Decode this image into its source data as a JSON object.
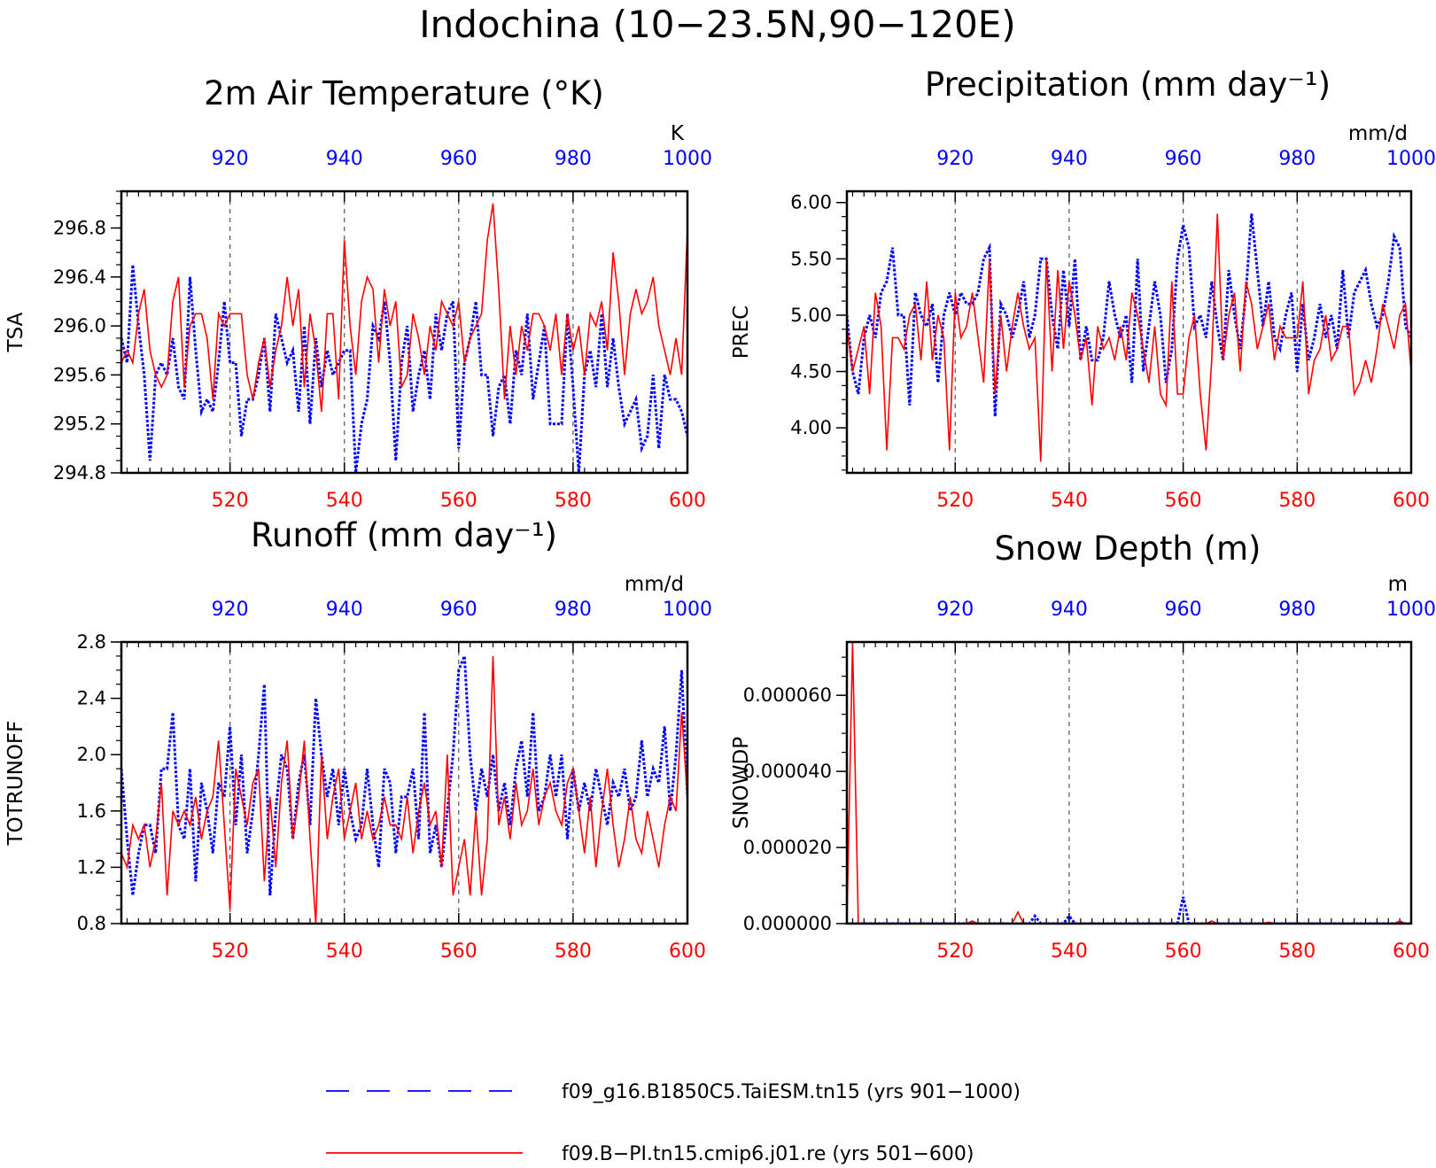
{
  "title": "Indochina (10−23.5N,90−120E)",
  "colors": {
    "case_a": "#0000ff",
    "case_b": "#ff0000",
    "axes": "#000000"
  },
  "legend": [
    {
      "label": "f09_g16.B1850C5.TaiESM.tn15 (yrs 901−1000)",
      "color": "#0000ff",
      "style": "dashed"
    },
    {
      "label": "f09.B−PI.tn15.cmip6.j01.re (yrs 501−600)",
      "color": "#ff0000",
      "style": "solid"
    }
  ],
  "chart_data": [
    {
      "type": "line",
      "title": "2m Air Temperature (°K)",
      "ylabel": "TSA",
      "units": "K",
      "x_bottom": {
        "range": [
          501,
          600
        ],
        "ticks": [
          "520",
          "540",
          "560",
          "580",
          "600"
        ]
      },
      "x_top": {
        "range": [
          901,
          1000
        ],
        "ticks": [
          "920",
          "940",
          "960",
          "980",
          "1000"
        ]
      },
      "ylim": [
        294.8,
        297.1
      ],
      "yticks": [
        "294.8",
        "295.2",
        "295.6",
        "296.0",
        "296.4",
        "296.8"
      ],
      "grid": "vertical dashed at 520, 540, 560, 580",
      "series": [
        {
          "name": "f09_g16.B1850C5.TaiESM.tn15 (yrs 901−1000)",
          "axis": "top",
          "values": [
            295.9,
            295.7,
            296.5,
            296.0,
            295.6,
            294.9,
            295.6,
            295.7,
            295.6,
            295.9,
            295.5,
            295.4,
            296.4,
            295.8,
            295.3,
            295.4,
            295.3,
            295.7,
            296.2,
            295.7,
            295.7,
            295.1,
            295.4,
            295.4,
            295.6,
            295.9,
            295.3,
            296.1,
            295.9,
            295.7,
            295.8,
            295.3,
            296.0,
            295.2,
            295.9,
            295.5,
            295.8,
            295.6,
            295.7,
            295.8,
            295.8,
            294.8,
            295.2,
            295.4,
            296.0,
            295.9,
            296.2,
            295.7,
            294.9,
            295.7,
            296.0,
            295.3,
            295.6,
            295.8,
            295.4,
            296.1,
            295.8,
            296.1,
            296.2,
            295.0,
            295.7,
            295.9,
            296.2,
            295.6,
            295.6,
            295.1,
            295.5,
            295.6,
            295.2,
            295.8,
            295.6,
            296.1,
            295.4,
            295.7,
            296.0,
            295.2,
            295.2,
            295.2,
            296.1,
            295.5,
            294.8,
            295.6,
            295.8,
            295.5,
            296.1,
            295.5,
            295.9,
            295.5,
            295.2,
            295.3,
            295.4,
            295.0,
            295.1,
            295.6,
            295.0,
            295.6,
            295.4,
            295.4,
            295.3,
            295.1
          ]
        },
        {
          "name": "f09.B−PI.tn15.cmip6.j01.re (yrs 501−600)",
          "axis": "bottom",
          "values": [
            295.7,
            295.8,
            295.7,
            296.1,
            296.3,
            295.8,
            295.6,
            295.5,
            295.6,
            296.2,
            296.4,
            295.5,
            296.0,
            296.1,
            296.1,
            295.9,
            295.4,
            296.1,
            296.0,
            296.1,
            296.1,
            296.1,
            295.6,
            295.4,
            295.7,
            295.9,
            295.5,
            295.8,
            296.0,
            296.4,
            296.0,
            296.3,
            295.5,
            296.1,
            295.8,
            295.3,
            296.1,
            296.1,
            295.4,
            296.7,
            296.0,
            295.6,
            296.2,
            296.4,
            296.3,
            295.7,
            296.3,
            296.0,
            296.2,
            295.5,
            295.6,
            296.1,
            295.9,
            295.6,
            296.0,
            295.8,
            296.2,
            296.1,
            296.0,
            296.2,
            295.7,
            295.9,
            296.0,
            296.1,
            296.7,
            297.0,
            296.3,
            295.4,
            296.0,
            295.6,
            296.0,
            295.8,
            296.1,
            296.1,
            296.0,
            295.8,
            296.1,
            295.6,
            296.1,
            295.8,
            296.0,
            295.6,
            296.1,
            296.0,
            296.2,
            295.8,
            296.6,
            296.2,
            295.6,
            296.1,
            296.3,
            296.1,
            296.2,
            296.4,
            296.0,
            295.8,
            295.6,
            295.9,
            295.6,
            296.8
          ]
        }
      ]
    },
    {
      "type": "line",
      "title": "Precipitation (mm day⁻¹)",
      "ylabel": "PREC",
      "units": "mm/d",
      "x_bottom": {
        "range": [
          501,
          600
        ],
        "ticks": [
          "520",
          "540",
          "560",
          "580",
          "600"
        ]
      },
      "x_top": {
        "range": [
          901,
          1000
        ],
        "ticks": [
          "920",
          "940",
          "960",
          "980",
          "1000"
        ]
      },
      "ylim": [
        3.6,
        6.1
      ],
      "yticks": [
        "4.00",
        "4.50",
        "5.00",
        "5.50",
        "6.00"
      ],
      "grid": "vertical dashed at 520, 540, 560, 580",
      "series": [
        {
          "name": "f09_g16.B1850C5.TaiESM.tn15 (yrs 901−1000)",
          "axis": "top",
          "values": [
            5.0,
            4.5,
            4.3,
            4.8,
            5.0,
            4.8,
            5.2,
            5.3,
            5.6,
            5.0,
            5.0,
            4.2,
            5.2,
            5.0,
            4.9,
            5.1,
            4.4,
            5.0,
            5.2,
            5.0,
            5.2,
            5.1,
            5.1,
            5.2,
            5.5,
            5.6,
            4.1,
            5.1,
            5.0,
            4.8,
            5.0,
            5.3,
            4.8,
            5.0,
            5.5,
            5.5,
            5.0,
            4.7,
            5.4,
            4.9,
            5.5,
            4.6,
            4.9,
            4.6,
            4.6,
            4.8,
            5.3,
            5.0,
            4.8,
            5.0,
            4.4,
            5.5,
            4.5,
            4.9,
            5.3,
            5.0,
            4.4,
            4.7,
            5.5,
            5.8,
            5.6,
            4.9,
            5.0,
            4.8,
            5.3,
            4.9,
            4.6,
            5.4,
            5.0,
            4.7,
            5.2,
            5.9,
            5.4,
            4.9,
            5.3,
            4.8,
            4.7,
            5.0,
            5.2,
            4.5,
            5.1,
            4.6,
            4.8,
            5.1,
            4.8,
            5.0,
            4.7,
            5.4,
            4.8,
            5.2,
            5.3,
            5.4,
            5.1,
            4.9,
            5.0,
            5.3,
            5.7,
            5.6,
            4.9,
            4.8
          ]
        },
        {
          "name": "f09.B−PI.tn15.cmip6.j01.re (yrs 501−600)",
          "axis": "bottom",
          "values": [
            4.9,
            4.5,
            4.7,
            4.9,
            4.3,
            5.2,
            4.9,
            3.8,
            4.8,
            4.8,
            4.7,
            5.0,
            5.1,
            4.6,
            5.3,
            4.6,
            5.0,
            4.8,
            3.8,
            5.2,
            4.8,
            4.9,
            5.2,
            4.8,
            4.4,
            5.5,
            4.3,
            5.0,
            4.5,
            4.9,
            5.2,
            4.9,
            4.7,
            4.8,
            3.7,
            5.5,
            4.5,
            5.4,
            4.7,
            5.3,
            5.0,
            4.6,
            4.8,
            4.2,
            4.9,
            4.7,
            4.8,
            4.6,
            4.9,
            4.6,
            5.2,
            5.0,
            4.7,
            4.4,
            4.9,
            4.3,
            4.2,
            5.3,
            4.3,
            4.3,
            4.8,
            5.0,
            4.3,
            3.8,
            4.6,
            5.9,
            4.6,
            5.0,
            5.2,
            4.5,
            5.3,
            5.1,
            4.7,
            4.9,
            5.1,
            4.6,
            4.9,
            4.8,
            4.8,
            4.8,
            5.3,
            4.3,
            4.6,
            4.7,
            5.0,
            4.6,
            4.7,
            4.9,
            4.9,
            4.3,
            4.4,
            4.6,
            4.4,
            4.7,
            5.1,
            4.9,
            4.7,
            5.0,
            5.1,
            4.5
          ]
        }
      ]
    },
    {
      "type": "line",
      "title": "Runoff (mm day⁻¹)",
      "ylabel": "TOTRUNOFF",
      "units": "mm/d",
      "x_bottom": {
        "range": [
          501,
          600
        ],
        "ticks": [
          "520",
          "540",
          "560",
          "580",
          "600"
        ]
      },
      "x_top": {
        "range": [
          901,
          1000
        ],
        "ticks": [
          "920",
          "940",
          "960",
          "980",
          "1000"
        ]
      },
      "ylim": [
        0.8,
        2.8
      ],
      "yticks": [
        "0.8",
        "1.2",
        "1.6",
        "2.0",
        "2.4",
        "2.8"
      ],
      "grid": "vertical dashed at 520, 540, 560, 580",
      "series": [
        {
          "name": "f09_g16.B1850C5.TaiESM.tn15 (yrs 901−1000)",
          "axis": "top",
          "values": [
            1.9,
            1.4,
            1.0,
            1.3,
            1.5,
            1.5,
            1.3,
            1.9,
            1.9,
            2.3,
            1.5,
            1.4,
            1.9,
            1.1,
            1.8,
            1.6,
            1.3,
            1.8,
            1.7,
            2.2,
            1.5,
            2.0,
            1.3,
            1.6,
            2.0,
            2.5,
            1.0,
            1.6,
            2.0,
            1.9,
            1.4,
            1.8,
            2.0,
            1.5,
            2.4,
            2.0,
            1.7,
            1.9,
            1.5,
            1.9,
            1.6,
            1.4,
            1.5,
            1.9,
            1.5,
            1.2,
            1.9,
            1.8,
            1.3,
            1.7,
            1.7,
            1.9,
            1.4,
            2.3,
            1.3,
            1.5,
            1.2,
            1.6,
            2.0,
            2.6,
            2.7,
            2.0,
            1.6,
            1.9,
            1.7,
            2.0,
            1.6,
            1.8,
            1.5,
            1.9,
            2.1,
            1.7,
            2.3,
            1.6,
            1.7,
            2.0,
            1.7,
            2.0,
            1.4,
            1.9,
            1.6,
            1.8,
            1.6,
            1.9,
            1.7,
            1.5,
            1.8,
            1.7,
            1.9,
            1.6,
            1.7,
            2.1,
            1.7,
            1.9,
            1.8,
            2.2,
            1.6,
            2.0,
            2.6,
            1.7
          ]
        },
        {
          "name": "f09.B−PI.tn15.cmip6.j01.re (yrs 501−600)",
          "axis": "bottom",
          "values": [
            1.3,
            1.2,
            1.5,
            1.4,
            1.5,
            1.2,
            1.4,
            1.8,
            1.0,
            1.6,
            1.5,
            1.6,
            1.5,
            1.7,
            1.4,
            1.6,
            1.7,
            2.1,
            1.5,
            0.9,
            1.9,
            1.7,
            1.5,
            1.8,
            1.9,
            1.1,
            1.7,
            1.2,
            1.8,
            2.1,
            1.4,
            1.7,
            2.1,
            1.4,
            0.8,
            2.0,
            1.4,
            1.7,
            1.9,
            1.4,
            1.6,
            1.8,
            1.4,
            1.6,
            1.4,
            1.5,
            1.7,
            1.5,
            1.5,
            1.4,
            1.7,
            1.3,
            1.6,
            1.8,
            1.5,
            1.6,
            1.2,
            2.0,
            1.0,
            1.2,
            1.4,
            1.0,
            1.6,
            1.0,
            1.4,
            2.7,
            1.5,
            1.7,
            1.4,
            1.8,
            1.5,
            1.6,
            1.9,
            1.5,
            1.7,
            1.8,
            1.6,
            1.5,
            1.8,
            1.9,
            1.6,
            1.3,
            1.7,
            1.2,
            1.6,
            1.9,
            1.5,
            1.2,
            1.4,
            1.7,
            1.4,
            1.3,
            1.6,
            1.4,
            1.2,
            1.5,
            1.7,
            1.6,
            2.3,
            1.7
          ]
        }
      ]
    },
    {
      "type": "line",
      "title": "Snow Depth (m)",
      "ylabel": "SNOWDP",
      "units": "m",
      "x_bottom": {
        "range": [
          501,
          600
        ],
        "ticks": [
          "520",
          "540",
          "560",
          "580",
          "600"
        ]
      },
      "x_top": {
        "range": [
          901,
          1000
        ],
        "ticks": [
          "920",
          "940",
          "960",
          "980",
          "1000"
        ]
      },
      "ylim": [
        0,
        7.4e-05
      ],
      "yticks": [
        "0.000000",
        "0.000020",
        "0.000040",
        "0.000060"
      ],
      "grid": "vertical dashed at 520, 540, 560, 580",
      "series": [
        {
          "name": "f09_g16.B1850C5.TaiESM.tn15 (yrs 901−1000)",
          "axis": "top",
          "values": [
            0,
            0,
            0,
            0,
            0,
            0,
            0,
            0,
            0,
            0,
            0,
            0,
            0,
            0,
            0,
            0,
            0,
            0,
            0,
            0,
            0,
            0,
            0,
            0,
            0,
            0,
            0,
            0,
            0,
            0,
            0,
            0,
            0,
            2e-06,
            0,
            0,
            0,
            0,
            0,
            2e-06,
            0,
            0,
            0,
            0,
            0,
            0,
            0,
            0,
            0,
            0,
            0,
            0,
            0,
            0,
            0,
            0,
            0,
            0,
            0,
            7e-06,
            0,
            0,
            0,
            0,
            0,
            0,
            0,
            0,
            0,
            0,
            0,
            0,
            0,
            0,
            0,
            0,
            0,
            0,
            0,
            0,
            0,
            0,
            0,
            0,
            0,
            0,
            0,
            0,
            0,
            0,
            0,
            0,
            0,
            0,
            0,
            0,
            0,
            0,
            0,
            0
          ]
        },
        {
          "name": "f09.B−PI.tn15.cmip6.j01.re (yrs 501−600)",
          "axis": "bottom",
          "values": [
            0,
            7.4e-05,
            0,
            0,
            0,
            0,
            0,
            0,
            0,
            0,
            0,
            0,
            0,
            0,
            0,
            0,
            0,
            0,
            0,
            0,
            0,
            0,
            7e-07,
            0,
            0,
            0,
            0,
            0,
            0,
            0,
            3e-06,
            0,
            0,
            0,
            0,
            0,
            0,
            0,
            0,
            0,
            0,
            0,
            0,
            0,
            0,
            0,
            0,
            0,
            0,
            0,
            0,
            0,
            0,
            0,
            0,
            0,
            0,
            0,
            0,
            0,
            0,
            0,
            0,
            0,
            7e-07,
            0,
            0,
            0,
            0,
            0,
            0,
            0,
            0,
            0,
            4e-07,
            0,
            0,
            0,
            0,
            0,
            0,
            0,
            0,
            0,
            0,
            0,
            0,
            0,
            0,
            0,
            0,
            0,
            0,
            0,
            0,
            0,
            0,
            7e-07,
            0,
            0
          ]
        }
      ]
    }
  ]
}
